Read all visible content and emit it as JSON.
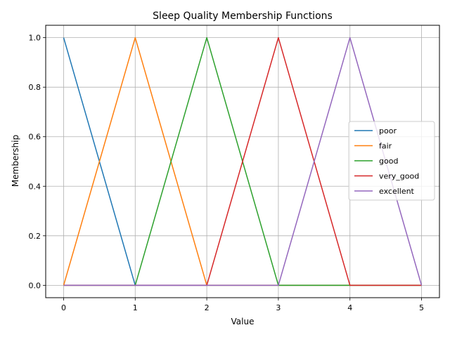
{
  "chart_data": {
    "type": "line",
    "title": "Sleep Quality Membership Functions",
    "xlabel": "Value",
    "ylabel": "Membership",
    "xlim": [
      -0.25,
      5.25
    ],
    "ylim": [
      -0.05,
      1.05
    ],
    "x_ticks": [
      0,
      1,
      2,
      3,
      4,
      5
    ],
    "y_ticks": [
      0.0,
      0.2,
      0.4,
      0.6,
      0.8,
      1.0
    ],
    "x_tick_labels": [
      "0",
      "1",
      "2",
      "3",
      "4",
      "5"
    ],
    "y_tick_labels": [
      "0.0",
      "0.2",
      "0.4",
      "0.6",
      "0.8",
      "1.0"
    ],
    "grid": true,
    "legend_position": "center-right",
    "x": [
      0,
      1,
      2,
      3,
      4,
      5
    ],
    "series": [
      {
        "name": "poor",
        "color": "#1f77b4",
        "values": [
          1,
          0,
          0,
          0,
          0,
          0
        ]
      },
      {
        "name": "fair",
        "color": "#ff7f0e",
        "values": [
          0,
          1,
          0,
          0,
          0,
          0
        ]
      },
      {
        "name": "good",
        "color": "#2ca02c",
        "values": [
          0,
          0,
          1,
          0,
          0,
          0
        ]
      },
      {
        "name": "very_good",
        "color": "#d62728",
        "values": [
          0,
          0,
          0,
          1,
          0,
          0
        ]
      },
      {
        "name": "excellent",
        "color": "#9467bd",
        "values": [
          0,
          0,
          0,
          0,
          1,
          0
        ]
      }
    ]
  }
}
